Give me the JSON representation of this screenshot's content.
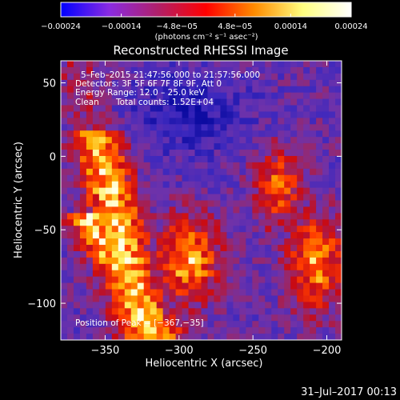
{
  "chart_data": {
    "type": "heatmap",
    "title": "Reconstructed RHESSI Image",
    "xlabel": "Heliocentric X (arcsec)",
    "ylabel": "Heliocentric Y (arcsec)",
    "xlim": [
      -380,
      -190
    ],
    "ylim": [
      -125,
      65
    ],
    "x_ticks": [
      -350,
      -300,
      -250,
      -200
    ],
    "x_tick_labels": [
      "−350",
      "−300",
      "−250",
      "−200"
    ],
    "y_ticks": [
      50,
      0,
      -50,
      -100
    ],
    "y_tick_labels": [
      "50",
      "0",
      "−50",
      "−100"
    ],
    "colorbar": {
      "min": -0.00024,
      "max": 0.00024,
      "ticks": [
        -0.00024,
        -0.00014,
        -4.8e-05,
        4.8e-05,
        0.00014,
        0.00024
      ],
      "tick_labels": [
        "−0.00024",
        "−0.00014",
        "−4.8e−05",
        "4.8e−05",
        "0.00014",
        "0.00024"
      ],
      "unit_label": "(photons cm⁻² s⁻¹ asec⁻²)",
      "colors": [
        "#0000ff",
        "#8a2be2",
        "#b0206a",
        "#ff0000",
        "#ff8c00",
        "#ffff80",
        "#ffffff"
      ]
    },
    "annotations": {
      "time_range": "5–Feb–2015 21:47:56.000 to 21:57:56.000",
      "detectors": "Detectors: 3F 5F 6F 7F 8F 9F, Att 0",
      "energy_range": "Energy Range: 12.0 – 25.0 keV",
      "clean_label": "Clean",
      "total_counts": "Total counts: 1.52E+04",
      "peak": "Position of Peak = [−367,−35]"
    },
    "peak_position": [
      -367,
      -35
    ],
    "bright_regions": [
      {
        "name": "left-arc",
        "x": -365,
        "y": -45
      },
      {
        "name": "center-lower",
        "x": -300,
        "y": -75
      },
      {
        "name": "right-lower",
        "x": -210,
        "y": -70
      },
      {
        "name": "right-upper",
        "x": -240,
        "y": 0
      }
    ]
  },
  "footer": {
    "date_stamp": "31–Jul–2017 00:13"
  }
}
